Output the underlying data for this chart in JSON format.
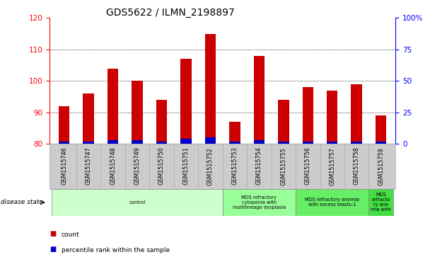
{
  "title": "GDS5622 / ILMN_2198897",
  "samples": [
    "GSM1515746",
    "GSM1515747",
    "GSM1515748",
    "GSM1515749",
    "GSM1515750",
    "GSM1515751",
    "GSM1515752",
    "GSM1515753",
    "GSM1515754",
    "GSM1515755",
    "GSM1515756",
    "GSM1515757",
    "GSM1515758",
    "GSM1515759"
  ],
  "counts": [
    92,
    96,
    104,
    100,
    94,
    107,
    115,
    87,
    108,
    94,
    98,
    97,
    99,
    89
  ],
  "percentile_ranks": [
    2,
    2,
    3,
    3,
    2,
    4,
    5,
    2,
    3,
    2,
    2,
    2,
    2,
    2
  ],
  "bar_color": "#cc0000",
  "blue_color": "#0000cc",
  "ylim_left": [
    80,
    120
  ],
  "ylim_right": [
    0,
    100
  ],
  "yticks_left": [
    80,
    90,
    100,
    110,
    120
  ],
  "yticks_right": [
    0,
    25,
    50,
    75,
    100
  ],
  "ytick_labels_right": [
    "0",
    "25",
    "50",
    "75",
    "100%"
  ],
  "grid_values": [
    90,
    100,
    110
  ],
  "disease_groups": [
    {
      "label": "control",
      "start": 0,
      "end": 7,
      "color": "#ccffcc"
    },
    {
      "label": "MDS refractory\ncytopenia with\nmultilineage dysplasia",
      "start": 7,
      "end": 10,
      "color": "#99ff99"
    },
    {
      "label": "MDS refractory anemia\nwith excess blasts-1",
      "start": 10,
      "end": 13,
      "color": "#66ee66"
    },
    {
      "label": "MDS\nrefracto\nry ane\nmia with",
      "start": 13,
      "end": 14,
      "color": "#44dd44"
    }
  ],
  "legend_count_color": "#cc0000",
  "legend_percentile_color": "#0000cc",
  "bar_width": 0.45,
  "background_color": "#ffffff",
  "xtick_bg_color": "#cccccc",
  "title_fontsize": 10,
  "axis_fontsize": 7.5
}
